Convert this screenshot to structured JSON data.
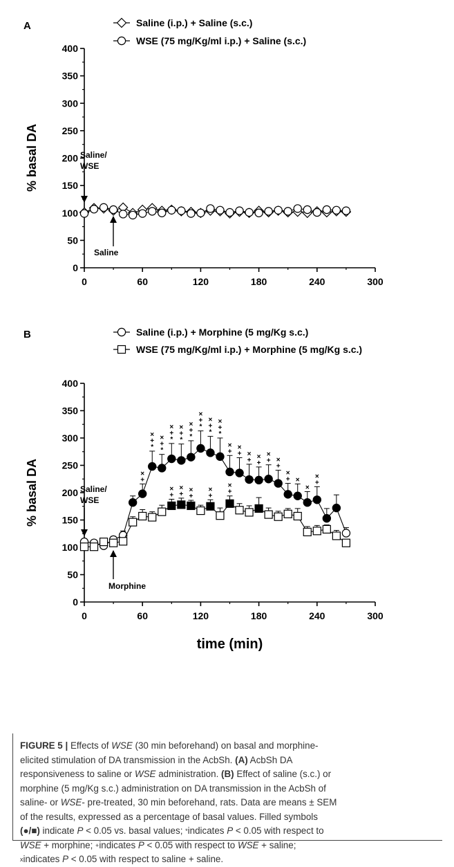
{
  "chart_data": [
    {
      "type": "line",
      "panel_label": "A",
      "xlabel": "",
      "ylabel": "% basal DA",
      "xlim": [
        0,
        300
      ],
      "ylim": [
        0,
        400
      ],
      "xticks": [
        0,
        60,
        120,
        180,
        240,
        300
      ],
      "yticks": [
        0,
        50,
        100,
        150,
        200,
        250,
        300,
        350,
        400
      ],
      "legend_placement": "top",
      "grid": false,
      "series": [
        {
          "name": "Saline (i.p.) + Saline (s.c.)",
          "marker": "diamond-open",
          "x": [
            0,
            10,
            20,
            30,
            40,
            50,
            60,
            70,
            80,
            90,
            100,
            110,
            120,
            130,
            140,
            150,
            160,
            170,
            180,
            190,
            200,
            210,
            220,
            230,
            240,
            250,
            260,
            270
          ],
          "y": [
            101,
            109,
            108,
            104,
            110,
            100,
            106,
            109,
            104,
            106,
            103,
            102,
            100,
            104,
            103,
            99,
            102,
            100,
            104,
            101,
            104,
            101,
            102,
            100,
            103,
            101,
            103,
            102
          ]
        },
        {
          "name": "WSE (75 mg/Kg/ml i.p.) + Saline (s.c.)",
          "marker": "circle-open",
          "x": [
            0,
            10,
            20,
            30,
            40,
            50,
            60,
            70,
            80,
            90,
            100,
            110,
            120,
            130,
            140,
            150,
            160,
            170,
            180,
            190,
            200,
            210,
            220,
            230,
            240,
            250,
            260,
            270
          ],
          "y": [
            99,
            107,
            110,
            106,
            98,
            96,
            99,
            103,
            100,
            105,
            104,
            99,
            100,
            108,
            105,
            101,
            104,
            101,
            100,
            103,
            105,
            103,
            108,
            106,
            101,
            106,
            105,
            104
          ]
        }
      ],
      "annotations": [
        {
          "text": "Saline/",
          "x": 0
        },
        {
          "text": "WSE",
          "x": 0
        },
        {
          "text": "Saline",
          "x": 30
        }
      ]
    },
    {
      "type": "line",
      "panel_label": "B",
      "xlabel": "time (min)",
      "ylabel": "% basal DA",
      "xlim": [
        0,
        300
      ],
      "ylim": [
        0,
        400
      ],
      "xticks": [
        0,
        60,
        120,
        180,
        240,
        300
      ],
      "yticks": [
        0,
        50,
        100,
        150,
        200,
        250,
        300,
        350,
        400
      ],
      "legend_placement": "top",
      "grid": false,
      "series": [
        {
          "name": "Saline (i.p.) + Morphine (5 mg/Kg s.c.)",
          "marker": "circle",
          "x": [
            0,
            10,
            20,
            30,
            40,
            50,
            60,
            70,
            80,
            90,
            100,
            110,
            120,
            130,
            140,
            150,
            160,
            170,
            180,
            190,
            200,
            210,
            220,
            230,
            240,
            250,
            260,
            270
          ],
          "y": [
            110,
            108,
            103,
            114,
            122,
            182,
            198,
            248,
            245,
            262,
            259,
            265,
            281,
            273,
            266,
            238,
            236,
            224,
            223,
            225,
            217,
            197,
            194,
            182,
            187,
            153,
            172,
            126
          ],
          "sem": [
            5,
            5,
            5,
            6,
            8,
            12,
            18,
            28,
            25,
            28,
            30,
            30,
            32,
            30,
            34,
            30,
            28,
            28,
            24,
            26,
            24,
            20,
            22,
            20,
            24,
            18,
            24,
            10
          ],
          "filled": [
            false,
            false,
            false,
            false,
            false,
            true,
            true,
            true,
            true,
            true,
            true,
            true,
            true,
            true,
            true,
            true,
            true,
            true,
            true,
            true,
            true,
            true,
            true,
            true,
            true,
            true,
            true,
            false
          ]
        },
        {
          "name": "WSE (75 mg/Kg/ml i.p.) + Morphine (5 mg/Kg s.c.)",
          "marker": "square",
          "x": [
            0,
            10,
            20,
            30,
            40,
            50,
            60,
            70,
            80,
            90,
            100,
            110,
            120,
            130,
            140,
            150,
            160,
            170,
            180,
            190,
            200,
            210,
            220,
            230,
            240,
            250,
            260,
            270
          ],
          "y": [
            101,
            101,
            110,
            108,
            111,
            146,
            157,
            155,
            165,
            176,
            178,
            176,
            167,
            175,
            158,
            180,
            168,
            164,
            171,
            160,
            156,
            161,
            157,
            128,
            130,
            133,
            121,
            108
          ],
          "sem": [
            5,
            5,
            6,
            6,
            8,
            10,
            12,
            10,
            12,
            12,
            12,
            10,
            10,
            12,
            14,
            14,
            12,
            12,
            20,
            12,
            10,
            10,
            14,
            10,
            10,
            8,
            10,
            6
          ],
          "filled": [
            false,
            false,
            false,
            false,
            false,
            false,
            false,
            false,
            false,
            true,
            true,
            true,
            false,
            true,
            false,
            true,
            false,
            false,
            true,
            false,
            false,
            false,
            false,
            false,
            false,
            false,
            false,
            false
          ]
        }
      ],
      "significance": {
        "saline_morphine": [
          {
            "x": 60,
            "marks": "×+"
          },
          {
            "x": 70,
            "marks": "×+*"
          },
          {
            "x": 80,
            "marks": "×+*"
          },
          {
            "x": 90,
            "marks": "×+*"
          },
          {
            "x": 100,
            "marks": "×+*"
          },
          {
            "x": 110,
            "marks": "×+*"
          },
          {
            "x": 120,
            "marks": "×+*"
          },
          {
            "x": 130,
            "marks": "×+*"
          },
          {
            "x": 140,
            "marks": "×+*"
          },
          {
            "x": 150,
            "marks": "×+"
          },
          {
            "x": 160,
            "marks": "×+"
          },
          {
            "x": 170,
            "marks": "×+"
          },
          {
            "x": 180,
            "marks": "×+"
          },
          {
            "x": 190,
            "marks": "×+"
          },
          {
            "x": 200,
            "marks": "×+"
          },
          {
            "x": 210,
            "marks": "×+"
          },
          {
            "x": 220,
            "marks": "×"
          },
          {
            "x": 230,
            "marks": "×"
          },
          {
            "x": 240,
            "marks": "×+"
          }
        ],
        "wse_morphine": [
          {
            "x": 90,
            "marks": "×+"
          },
          {
            "x": 100,
            "marks": "×+"
          },
          {
            "x": 110,
            "marks": "×+"
          },
          {
            "x": 130,
            "marks": "×+"
          },
          {
            "x": 150,
            "marks": "×+"
          }
        ]
      },
      "annotations": [
        {
          "text": "Saline/",
          "x": 0
        },
        {
          "text": "WSE",
          "x": 0
        },
        {
          "text": "Morphine",
          "x": 30
        }
      ]
    }
  ],
  "caption": {
    "figure_label": "FIGURE 5 |",
    "lines": [
      [
        {
          "t": " Effects of "
        },
        {
          "t": "WSE",
          "s": "i"
        },
        {
          "t": " (30 min beforehand) on basal and morphine-"
        }
      ],
      [
        {
          "t": "elicited stimulation of DA transmission in the AcbSh. "
        },
        {
          "t": "(A)",
          "s": "b"
        },
        {
          "t": " AcbSh DA"
        }
      ],
      [
        {
          "t": "responsiveness to saline or "
        },
        {
          "t": "WSE",
          "s": "i"
        },
        {
          "t": " administration. "
        },
        {
          "t": "(B)",
          "s": "b"
        },
        {
          "t": " Effect of saline (s.c.) or"
        }
      ],
      [
        {
          "t": "morphine (5 mg/Kg s.c.) administration on DA transmission in the AcbSh of"
        }
      ],
      [
        {
          "t": "saline- or "
        },
        {
          "t": "WSE",
          "s": "i"
        },
        {
          "t": "- pre-treated, 30 min beforehand, rats. Data are means ± SEM"
        }
      ],
      [
        {
          "t": "of the results, expressed as a percentage of basal values. Filled symbols"
        }
      ],
      [
        {
          "t": "(●/■)",
          "s": "b"
        },
        {
          "t": " indicate "
        },
        {
          "t": "P",
          "s": "i"
        },
        {
          "t": " < 0.05 vs. basal values; "
        },
        {
          "t": "*",
          "s": "s"
        },
        {
          "t": "indicates "
        },
        {
          "t": "P",
          "s": "i"
        },
        {
          "t": " < 0.05 with respect to"
        }
      ],
      [
        {
          "t": "WSE",
          "s": "i"
        },
        {
          "t": " + morphine; "
        },
        {
          "t": "+",
          "s": "s"
        },
        {
          "t": "indicates "
        },
        {
          "t": "P",
          "s": "i"
        },
        {
          "t": " < 0.05 with respect to "
        },
        {
          "t": "WSE",
          "s": "i"
        },
        {
          "t": " + saline;"
        }
      ],
      [
        {
          "t": "x",
          "s": "s"
        },
        {
          "t": "indicates "
        },
        {
          "t": "P",
          "s": "i"
        },
        {
          "t": " < 0.05 with respect to saline + saline."
        }
      ]
    ]
  }
}
